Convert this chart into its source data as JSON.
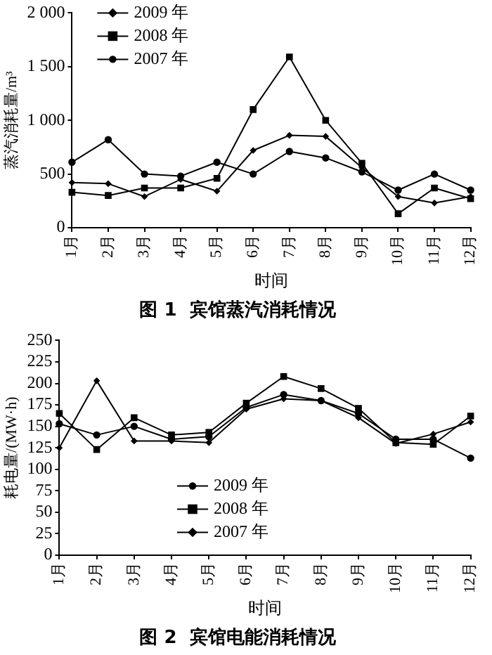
{
  "chart_data": [
    {
      "type": "line",
      "title": "图 1  宾馆蒸汽消耗情况",
      "xlabel": "时间",
      "ylabel": "蒸汽消耗量/m³",
      "categories": [
        "1月",
        "2月",
        "3月",
        "4月",
        "5月",
        "6月",
        "7月",
        "8月",
        "9月",
        "10月",
        "11月",
        "12月"
      ],
      "series": [
        {
          "name": "2009 年",
          "color": "#000000",
          "marker": "diamond",
          "values": [
            420,
            410,
            290,
            450,
            340,
            720,
            860,
            850,
            560,
            290,
            230,
            290
          ]
        },
        {
          "name": "2008 年",
          "color": "#000000",
          "marker": "square",
          "values": [
            330,
            300,
            370,
            370,
            460,
            1100,
            1590,
            1000,
            600,
            130,
            370,
            270
          ]
        },
        {
          "name": "2007 年",
          "color": "#000000",
          "marker": "circle",
          "values": [
            610,
            820,
            500,
            480,
            610,
            500,
            710,
            650,
            520,
            350,
            500,
            350
          ]
        }
      ],
      "ylim": [
        0,
        2000
      ],
      "yticks": [
        0,
        500,
        {
          "value": 1000,
          "label": "1 000"
        },
        {
          "value": 1500,
          "label": "1 500"
        },
        {
          "value": 2000,
          "label": "2 000"
        }
      ],
      "grid": false,
      "legend": "top left",
      "line_style": "solid"
    },
    {
      "type": "line",
      "title": "图 2  宾馆电能消耗情况",
      "xlabel": "时间",
      "ylabel": "耗电量/(MW·h)",
      "categories": [
        "1月",
        "2月",
        "3月",
        "4月",
        "5月",
        "6月",
        "7月",
        "8月",
        "9月",
        "10月",
        "11月",
        "12月"
      ],
      "series": [
        {
          "name": "2009 年",
          "color": "#000000",
          "marker": "circle",
          "values": [
            153,
            140,
            150,
            135,
            138,
            172,
            187,
            180,
            165,
            135,
            135,
            113
          ]
        },
        {
          "name": "2008 年",
          "color": "#000000",
          "marker": "square",
          "values": [
            165,
            123,
            160,
            140,
            143,
            177,
            208,
            194,
            171,
            131,
            129,
            162
          ]
        },
        {
          "name": "2007 年",
          "color": "#000000",
          "marker": "diamond",
          "values": [
            125,
            203,
            133,
            133,
            131,
            170,
            182,
            180,
            160,
            130,
            141,
            155
          ]
        }
      ],
      "ylim": [
        0,
        250
      ],
      "yticks": [
        0,
        25,
        50,
        75,
        100,
        125,
        150,
        175,
        200,
        225,
        250
      ],
      "grid": false,
      "legend": "bottom",
      "line_style": "solid"
    }
  ]
}
